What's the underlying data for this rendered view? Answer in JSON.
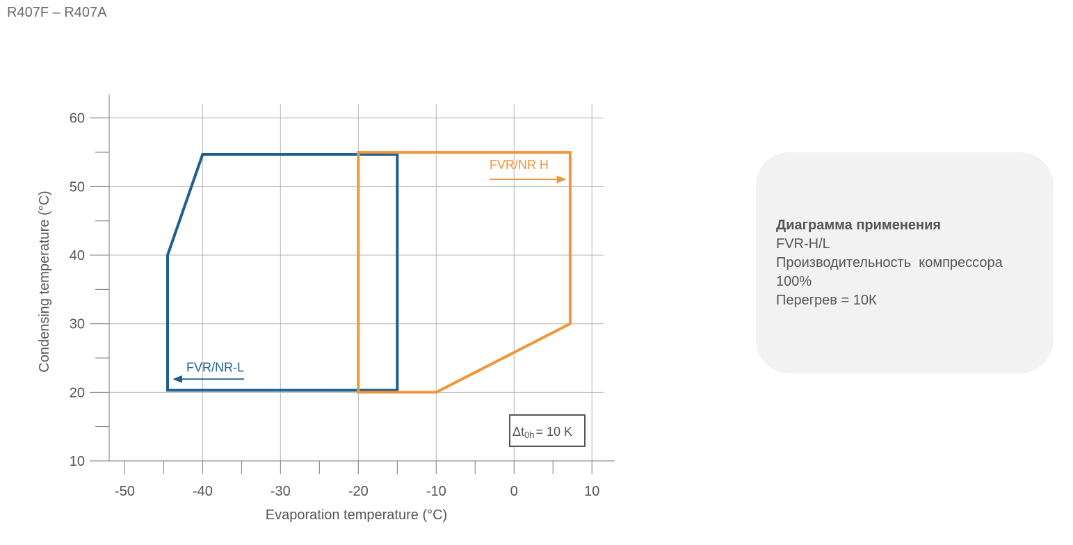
{
  "page": {
    "title": "R407F – R407A"
  },
  "info": {
    "title": "Диаграмма применения",
    "lines": [
      "FVR-H/L",
      "Производительность  компрессора",
      "100%",
      "Перегрев = 10К"
    ]
  },
  "chart_data": {
    "type": "area",
    "xlabel": "Evaporation temperature (°C)",
    "ylabel": "Condensing temperature (°C)",
    "xlim": [
      -52,
      11.5
    ],
    "ylim": [
      10,
      62
    ],
    "xticks": [
      -50,
      -40,
      -30,
      -20,
      -10,
      0,
      10
    ],
    "yticks": [
      10,
      20,
      30,
      40,
      50,
      60
    ],
    "grid": true,
    "annotation": {
      "prefix": "Δt",
      "sub": "0h",
      "suffix": "= 10 K"
    },
    "series": [
      {
        "name": "FVR/NR-L",
        "color": "#1e5f8f",
        "arrow": "left",
        "points": [
          [
            -44.5,
            20.3
          ],
          [
            -44.5,
            40
          ],
          [
            -40,
            54.7
          ],
          [
            -15,
            54.7
          ],
          [
            -15,
            20.3
          ]
        ]
      },
      {
        "name": "FVR/NR H",
        "color": "#f0963a",
        "arrow": "right",
        "points": [
          [
            -20,
            20
          ],
          [
            -20,
            55
          ],
          [
            7.2,
            55
          ],
          [
            7.2,
            30
          ],
          [
            -10,
            20
          ]
        ]
      }
    ]
  }
}
